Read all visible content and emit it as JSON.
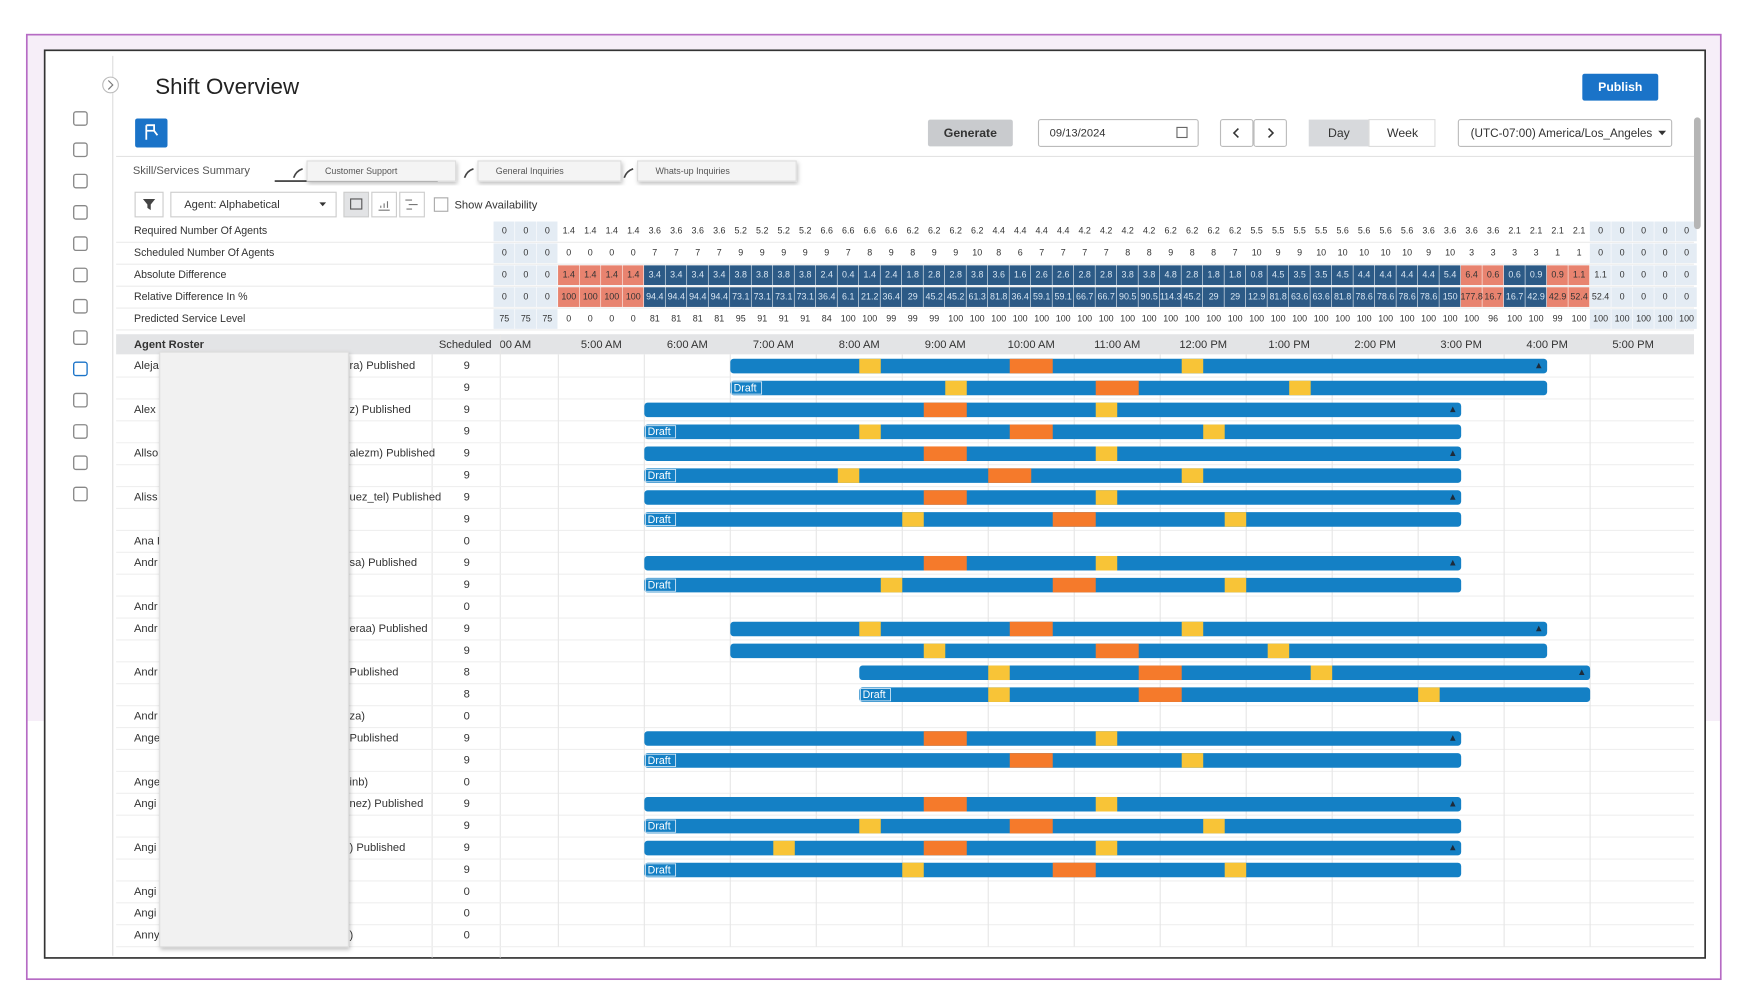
{
  "header": {
    "title": "Shift Overview",
    "publish": "Publish",
    "generate": "Generate",
    "date": "09/13/2024",
    "view_day": "Day",
    "view_week": "Week",
    "timezone": "(UTC-07:00) America/Los_Angeles"
  },
  "tabs": {
    "summary": "Skill/Services Summary",
    "items": [
      "Customer Support",
      "General Inquiries",
      "Whats-up Inquiries"
    ]
  },
  "filters": {
    "sort": "Agent: Alphabetical",
    "availability": "Show Availability"
  },
  "summary": {
    "rows": [
      {
        "label": "Required Number Of Agents",
        "values": [
          0,
          0,
          0,
          1.4,
          1.4,
          1.4,
          1.4,
          3.6,
          3.6,
          3.6,
          3.6,
          5.2,
          5.2,
          5.2,
          5.2,
          6.6,
          6.6,
          6.6,
          6.6,
          6.2,
          6.2,
          6.2,
          6.2,
          4.4,
          4.4,
          4.4,
          4.4,
          4.2,
          4.2,
          4.2,
          4.2,
          6.2,
          6.2,
          6.2,
          6.2,
          5.5,
          5.5,
          5.5,
          5.5,
          5.6,
          5.6,
          5.6,
          5.6,
          3.6,
          3.6,
          3.6,
          3.6,
          2.1,
          2.1,
          2.1,
          2.1,
          0,
          0,
          0,
          0,
          0
        ]
      },
      {
        "label": "Scheduled Number Of Agents",
        "values": [
          0,
          0,
          0,
          0,
          0,
          0,
          0,
          7,
          7,
          7,
          7,
          9,
          9,
          9,
          9,
          9,
          7,
          8,
          9,
          8,
          9,
          9,
          10,
          8,
          6,
          7,
          7,
          7,
          7,
          8,
          8,
          9,
          8,
          8,
          7,
          10,
          9,
          9,
          10,
          10,
          10,
          10,
          10,
          9,
          10,
          3,
          3,
          3,
          3,
          1,
          1,
          0,
          0,
          0,
          0,
          0
        ]
      },
      {
        "label": "Absolute Difference",
        "values": [
          0,
          0,
          0,
          1.4,
          1.4,
          1.4,
          1.4,
          3.4,
          3.4,
          3.4,
          3.4,
          3.8,
          3.8,
          3.8,
          3.8,
          2.4,
          0.4,
          1.4,
          2.4,
          1.8,
          2.8,
          2.8,
          3.8,
          3.6,
          1.6,
          2.6,
          2.6,
          2.8,
          2.8,
          3.8,
          3.8,
          4.8,
          2.8,
          1.8,
          1.8,
          0.8,
          4.5,
          3.5,
          3.5,
          4.5,
          4.4,
          4.4,
          4.4,
          4.4,
          5.4,
          6.4,
          0.6,
          0.6,
          0.9,
          0.9,
          1.1,
          1.1,
          0,
          0,
          0,
          0
        ]
      },
      {
        "label": "Relative Difference In %",
        "values": [
          0,
          0,
          0,
          100,
          100,
          100,
          100,
          94.4,
          94.4,
          94.4,
          94.4,
          73.1,
          73.1,
          73.1,
          73.1,
          36.4,
          6.1,
          21.2,
          36.4,
          29,
          45.2,
          45.2,
          61.3,
          81.8,
          36.4,
          59.1,
          59.1,
          66.7,
          66.7,
          90.5,
          90.5,
          114.3,
          45.2,
          29,
          29,
          12.9,
          81.8,
          63.6,
          63.6,
          81.8,
          78.6,
          78.6,
          78.6,
          78.6,
          150,
          177.8,
          16.7,
          16.7,
          42.9,
          42.9,
          52.4,
          52.4,
          0,
          0,
          0,
          0
        ]
      },
      {
        "label": "Predicted Service Level",
        "values": [
          75,
          75,
          75,
          0,
          0,
          0,
          0,
          81,
          81,
          81,
          81,
          95,
          91,
          91,
          91,
          84,
          100,
          100,
          99,
          99,
          99,
          100,
          100,
          100,
          100,
          100,
          100,
          100,
          100,
          100,
          100,
          100,
          100,
          100,
          100,
          100,
          100,
          100,
          100,
          100,
          100,
          100,
          100,
          100,
          100,
          100,
          96,
          100,
          100,
          99,
          100,
          100,
          100,
          100,
          100,
          100
        ]
      }
    ]
  },
  "roster": {
    "title": "Agent Roster",
    "scheduled_header": "Scheduled",
    "timeline": {
      "xlim": [
        4,
        18
      ],
      "ticks": [
        {
          "value": 4,
          "label": "00 AM"
        },
        {
          "value": 5,
          "label": "5:00 AM"
        },
        {
          "value": 6,
          "label": "6:00 AM"
        },
        {
          "value": 7,
          "label": "7:00 AM"
        },
        {
          "value": 8,
          "label": "8:00 AM"
        },
        {
          "value": 9,
          "label": "9:00 AM"
        },
        {
          "value": 10,
          "label": "10:00 AM"
        },
        {
          "value": 11,
          "label": "11:00 AM"
        },
        {
          "value": 12,
          "label": "12:00 PM"
        },
        {
          "value": 13,
          "label": "1:00 PM"
        },
        {
          "value": 14,
          "label": "2:00 PM"
        },
        {
          "value": 15,
          "label": "3:00 PM"
        },
        {
          "value": 16,
          "label": "4:00 PM"
        },
        {
          "value": 17,
          "label": "5:00 PM"
        }
      ]
    },
    "break_hours": 0.25,
    "lunch_hours": 0.5,
    "agents": [
      {
        "name": "Aleja",
        "status": "ra) Published",
        "scheduled": 9,
        "shift": [
          7,
          16.5
        ],
        "breaks": [
          8.5,
          12.25
        ],
        "lunch": 10.25
      },
      {
        "tag": "Draft",
        "scheduled": 9,
        "shift": [
          7,
          16.5
        ],
        "breaks": [
          9.5,
          13.5
        ],
        "lunch": 11.25
      },
      {
        "name": "Alex",
        "status": "z) Published",
        "scheduled": 9,
        "shift": [
          6,
          15.5
        ],
        "breaks": [
          11.25
        ],
        "lunch": 9.25
      },
      {
        "tag": "Draft",
        "scheduled": 9,
        "shift": [
          6,
          15.5
        ],
        "breaks": [
          8.5,
          12.5
        ],
        "lunch": 10.25
      },
      {
        "name": "Allso",
        "status": "alezm) Published",
        "scheduled": 9,
        "shift": [
          6,
          15.5
        ],
        "breaks": [
          11.25
        ],
        "lunch": 9.25
      },
      {
        "tag": "Draft",
        "scheduled": 9,
        "shift": [
          6,
          15.5
        ],
        "breaks": [
          8.25,
          12.25
        ],
        "lunch": 10
      },
      {
        "name": "Aliss",
        "status": "uez_tel) Published",
        "scheduled": 9,
        "shift": [
          6,
          15.5
        ],
        "breaks": [
          11.25
        ],
        "lunch": 9.25
      },
      {
        "tag": "Draft",
        "scheduled": 9,
        "shift": [
          6,
          15.5
        ],
        "breaks": [
          9,
          12.75
        ],
        "lunch": 10.75
      },
      {
        "name": "Ana I",
        "scheduled": 0
      },
      {
        "name": "Andr",
        "status": "sa) Published",
        "scheduled": 9,
        "shift": [
          6,
          15.5
        ],
        "breaks": [
          11.25
        ],
        "lunch": 9.25
      },
      {
        "tag": "Draft",
        "scheduled": 9,
        "shift": [
          6,
          15.5
        ],
        "breaks": [
          8.75,
          12.75
        ],
        "lunch": 10.75
      },
      {
        "name": "Andr",
        "scheduled": 0
      },
      {
        "name": "Andr",
        "status": "eraa) Published",
        "scheduled": 9,
        "shift": [
          7,
          16.5
        ],
        "breaks": [
          8.5,
          12.25
        ],
        "lunch": 10.25
      },
      {
        "scheduled": 9,
        "shift": [
          7,
          16.5
        ],
        "breaks": [
          9.25,
          13.25
        ],
        "lunch": 11.25
      },
      {
        "name": "Andr",
        "status": "Published",
        "scheduled": 8,
        "shift": [
          8.5,
          17
        ],
        "breaks": [
          10,
          13.75
        ],
        "lunch": 11.75
      },
      {
        "tag": "Draft",
        "scheduled": 8,
        "shift": [
          8.5,
          17
        ],
        "breaks": [
          10,
          15
        ],
        "lunch": 11.75
      },
      {
        "name": "Andr",
        "status": "za)",
        "scheduled": 0
      },
      {
        "name": "Ange",
        "status": "Published",
        "scheduled": 9,
        "shift": [
          6,
          15.5
        ],
        "breaks": [
          11.25
        ],
        "lunch": 9.25
      },
      {
        "tag": "Draft",
        "scheduled": 9,
        "shift": [
          6,
          15.5
        ],
        "breaks": [
          12.25
        ],
        "lunch": 10.25
      },
      {
        "name": "Ange",
        "status": "inb)",
        "scheduled": 0
      },
      {
        "name": "Angi",
        "status": "nez) Published",
        "scheduled": 9,
        "shift": [
          6,
          15.5
        ],
        "breaks": [
          11.25
        ],
        "lunch": 9.25
      },
      {
        "tag": "Draft",
        "scheduled": 9,
        "shift": [
          6,
          15.5
        ],
        "breaks": [
          8.5,
          12.5
        ],
        "lunch": 10.25
      },
      {
        "name": "Angi",
        "status": ") Published",
        "scheduled": 9,
        "shift": [
          6,
          15.5
        ],
        "breaks": [
          7.5,
          11.25
        ],
        "lunch": 9.25
      },
      {
        "tag": "Draft",
        "scheduled": 9,
        "shift": [
          6,
          15.5
        ],
        "breaks": [
          9,
          12.75
        ],
        "lunch": 10.75
      },
      {
        "name": "Angi",
        "scheduled": 0
      },
      {
        "name": "Angi",
        "scheduled": 0
      },
      {
        "name": "Anny",
        "status": ")",
        "scheduled": 0
      }
    ]
  }
}
